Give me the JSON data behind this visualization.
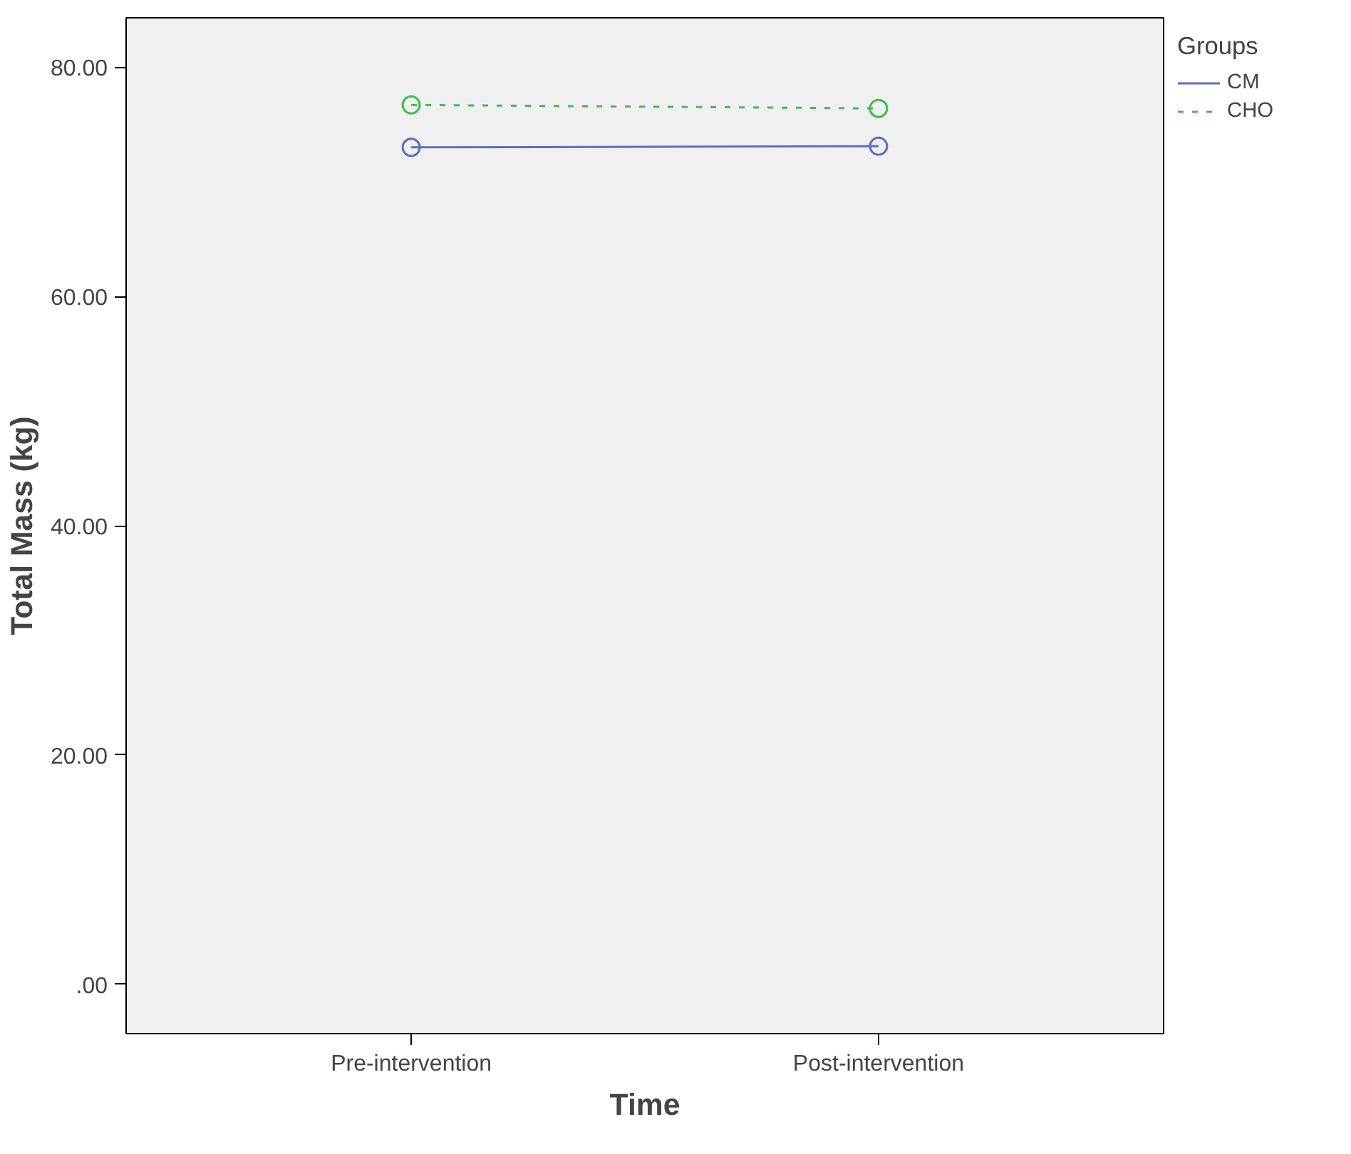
{
  "chart_data": {
    "type": "line",
    "xlabel": "Time",
    "ylabel": "Total Mass (kg)",
    "legend_title": "Groups",
    "categories": [
      "Pre-intervention",
      "Post-intervention"
    ],
    "series": [
      {
        "name": "CM",
        "color": "#5b6fc4",
        "values": [
          73.0,
          73.1
        ],
        "line_style": "solid"
      },
      {
        "name": "CHO",
        "color": "#3fbf4a",
        "values": [
          76.7,
          76.4
        ],
        "line_style": "dashed"
      }
    ],
    "ylim": [
      -4.3,
      84.3
    ],
    "yticks": [
      {
        "value": 0,
        "label": ".00"
      },
      {
        "value": 20,
        "label": "20.00"
      },
      {
        "value": 40,
        "label": "40.00"
      },
      {
        "value": 60,
        "label": "60.00"
      },
      {
        "value": 80,
        "label": "80.00"
      }
    ],
    "marker": "circle",
    "grid": false,
    "legend": "top right"
  }
}
